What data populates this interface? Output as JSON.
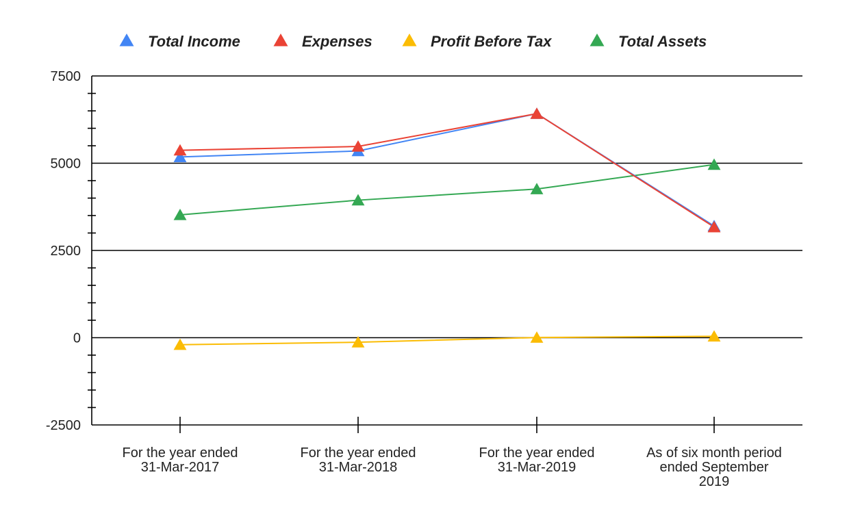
{
  "chart_data": {
    "type": "line",
    "title": "",
    "xlabel": "",
    "ylabel": "",
    "ylim": [
      -2500,
      7500
    ],
    "yticks": [
      -2500,
      0,
      2500,
      5000,
      7500
    ],
    "grid": true,
    "legend_position": "top",
    "marker": "triangle",
    "categories": [
      [
        "For the year ended",
        "31-Mar-2017"
      ],
      [
        "For the year ended",
        "31-Mar-2018"
      ],
      [
        "For the year ended",
        "31-Mar-2019"
      ],
      [
        "As of six month period",
        "ended September",
        "2019"
      ]
    ],
    "series": [
      {
        "name": "Total Income",
        "color": "#4285F4",
        "values": [
          5180,
          5350,
          6420,
          3200
        ]
      },
      {
        "name": "Expenses",
        "color": "#EA4335",
        "values": [
          5370,
          5480,
          6420,
          3170
        ]
      },
      {
        "name": "Profit Before Tax",
        "color": "#FBBC04",
        "values": [
          -200,
          -130,
          5,
          40
        ]
      },
      {
        "name": "Total Assets",
        "color": "#34A853",
        "values": [
          3520,
          3940,
          4260,
          4960
        ]
      }
    ]
  }
}
